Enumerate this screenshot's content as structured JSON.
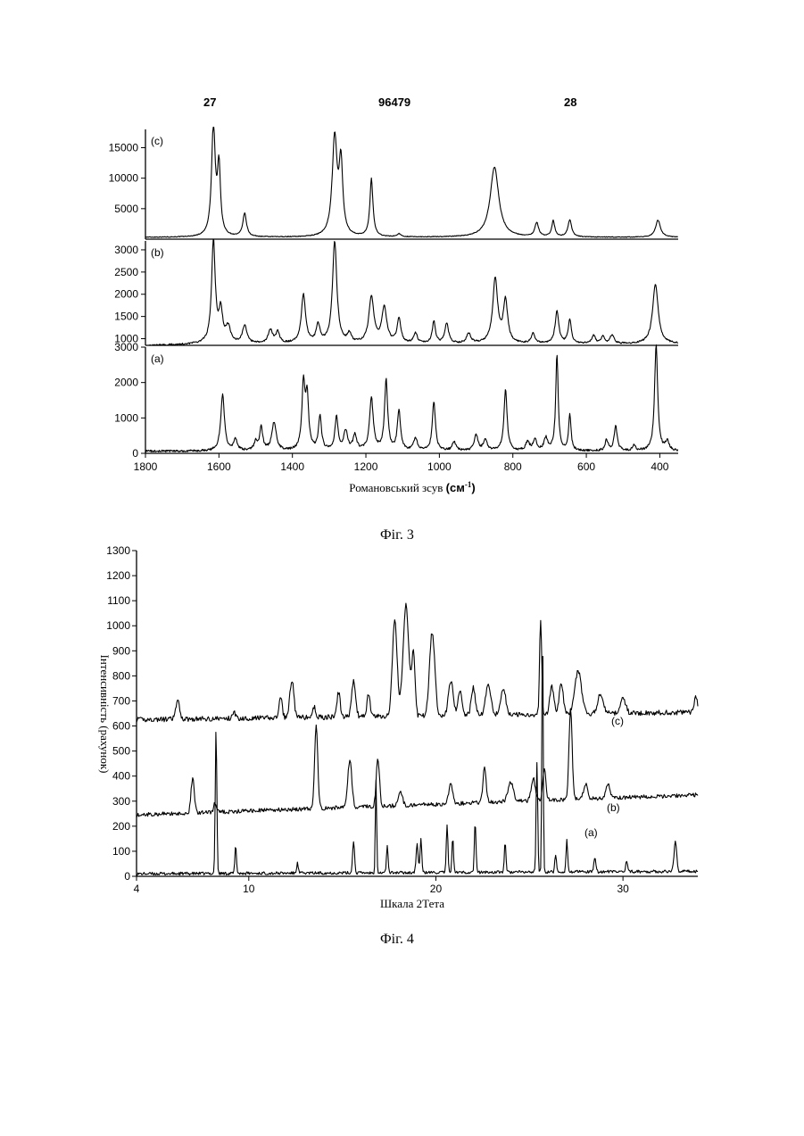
{
  "header": {
    "left_number": "27",
    "center_number": "96479",
    "right_number": "28"
  },
  "figure3": {
    "caption": "Фіг. 3",
    "chart_data": {
      "type": "line",
      "xlabel": "Романовський зсув",
      "xlabel_unit": "(см",
      "xlabel_unit_sup": "-1",
      "xlabel_unit_close": ")",
      "xlim": [
        1800,
        350
      ],
      "x_ticks": [
        1800,
        1600,
        1400,
        1200,
        1000,
        800,
        600,
        400
      ],
      "panels": [
        {
          "label": "(c)",
          "ylim": [
            0,
            18000
          ],
          "y_ticks": [
            5000,
            10000,
            15000
          ],
          "baseline": 300,
          "noise": 60,
          "peaks": [
            [
              1615,
              18000,
              6
            ],
            [
              1600,
              11000,
              5
            ],
            [
              1530,
              3800,
              6
            ],
            [
              1285,
              16000,
              8
            ],
            [
              1268,
              11500,
              6
            ],
            [
              1185,
              9500,
              5
            ],
            [
              1110,
              500,
              6
            ],
            [
              850,
              11500,
              14
            ],
            [
              735,
              2300,
              6
            ],
            [
              690,
              2600,
              5
            ],
            [
              645,
              2800,
              6
            ],
            [
              405,
              2800,
              8
            ]
          ]
        },
        {
          "label": "(b)",
          "ylim": [
            850,
            3200
          ],
          "y_ticks": [
            1000,
            1500,
            2000,
            2500,
            3000
          ],
          "baseline": 880,
          "noise": 18,
          "peaks": [
            [
              1615,
              2300,
              6
            ],
            [
              1595,
              700,
              6
            ],
            [
              1575,
              350,
              8
            ],
            [
              1530,
              400,
              7
            ],
            [
              1460,
              300,
              7
            ],
            [
              1440,
              250,
              6
            ],
            [
              1370,
              1100,
              7
            ],
            [
              1330,
              400,
              6
            ],
            [
              1285,
              2300,
              7
            ],
            [
              1245,
              200,
              6
            ],
            [
              1185,
              1050,
              8
            ],
            [
              1150,
              800,
              8
            ],
            [
              1110,
              550,
              6
            ],
            [
              1065,
              220,
              6
            ],
            [
              1015,
              500,
              5
            ],
            [
              980,
              450,
              6
            ],
            [
              920,
              220,
              7
            ],
            [
              848,
              1450,
              8
            ],
            [
              820,
              950,
              7
            ],
            [
              745,
              220,
              6
            ],
            [
              680,
              720,
              6
            ],
            [
              645,
              550,
              5
            ],
            [
              580,
              180,
              6
            ],
            [
              555,
              160,
              5
            ],
            [
              530,
              200,
              6
            ],
            [
              412,
              1350,
              9
            ]
          ]
        },
        {
          "label": "(a)",
          "ylim": [
            0,
            3000
          ],
          "y_ticks": [
            0,
            1000,
            2000,
            3000
          ],
          "baseline": 60,
          "noise": 30,
          "peaks": [
            [
              1590,
              1600,
              6
            ],
            [
              1555,
              300,
              6
            ],
            [
              1500,
              250,
              5
            ],
            [
              1485,
              650,
              5
            ],
            [
              1450,
              800,
              7
            ],
            [
              1370,
              1800,
              5
            ],
            [
              1360,
              1450,
              5
            ],
            [
              1325,
              950,
              5
            ],
            [
              1280,
              950,
              5
            ],
            [
              1255,
              550,
              6
            ],
            [
              1230,
              420,
              6
            ],
            [
              1185,
              1500,
              6
            ],
            [
              1145,
              2000,
              5
            ],
            [
              1110,
              1150,
              5
            ],
            [
              1065,
              350,
              6
            ],
            [
              1015,
              1400,
              5
            ],
            [
              960,
              250,
              6
            ],
            [
              900,
              450,
              6
            ],
            [
              875,
              300,
              6
            ],
            [
              820,
              1750,
              5
            ],
            [
              760,
              250,
              6
            ],
            [
              740,
              300,
              6
            ],
            [
              710,
              350,
              6
            ],
            [
              680,
              2700,
              4
            ],
            [
              645,
              1000,
              4
            ],
            [
              545,
              300,
              5
            ],
            [
              520,
              700,
              5
            ],
            [
              470,
              150,
              5
            ],
            [
              410,
              3000,
              5
            ],
            [
              380,
              250,
              6
            ]
          ]
        }
      ]
    }
  },
  "figure4": {
    "caption": "Фіг. 4",
    "chart_data": {
      "type": "line",
      "xlabel": "Шкала 2Тета",
      "ylabel": "Інтенсивність (рахунок)",
      "xlim": [
        4,
        34
      ],
      "ylim": [
        0,
        1300
      ],
      "x_ticks": [
        4,
        10,
        20,
        30
      ],
      "y_ticks": [
        0,
        100,
        200,
        300,
        400,
        500,
        600,
        700,
        800,
        900,
        1000,
        1100,
        1200,
        1300
      ],
      "series": [
        {
          "label": "(c)",
          "baseline": 625,
          "drift": 30,
          "noise": 10,
          "peaks": [
            [
              6.2,
              70,
              0.15
            ],
            [
              9.2,
              30,
              0.1
            ],
            [
              11.7,
              80,
              0.12
            ],
            [
              12.3,
              150,
              0.15
            ],
            [
              13.5,
              40,
              0.12
            ],
            [
              14.8,
              100,
              0.12
            ],
            [
              15.6,
              140,
              0.15
            ],
            [
              16.4,
              90,
              0.12
            ],
            [
              17.8,
              380,
              0.18
            ],
            [
              18.4,
              440,
              0.22
            ],
            [
              18.8,
              250,
              0.12
            ],
            [
              19.8,
              330,
              0.2
            ],
            [
              20.8,
              140,
              0.18
            ],
            [
              21.3,
              100,
              0.15
            ],
            [
              22.0,
              110,
              0.15
            ],
            [
              22.8,
              120,
              0.2
            ],
            [
              23.6,
              100,
              0.2
            ],
            [
              25.6,
              380,
              0.08
            ],
            [
              26.2,
              110,
              0.15
            ],
            [
              26.7,
              120,
              0.15
            ],
            [
              27.6,
              170,
              0.25
            ],
            [
              28.8,
              80,
              0.2
            ],
            [
              30.0,
              60,
              0.2
            ],
            [
              33.9,
              60,
              0.12
            ]
          ]
        },
        {
          "label": "(b)",
          "baseline": 245,
          "drift": 80,
          "noise": 8,
          "peaks": [
            [
              7.0,
              140,
              0.12
            ],
            [
              8.2,
              40,
              0.1
            ],
            [
              13.6,
              330,
              0.12
            ],
            [
              15.4,
              190,
              0.15
            ],
            [
              16.9,
              190,
              0.12
            ],
            [
              18.1,
              60,
              0.15
            ],
            [
              20.8,
              80,
              0.15
            ],
            [
              22.6,
              140,
              0.12
            ],
            [
              24.0,
              80,
              0.2
            ],
            [
              25.2,
              90,
              0.15
            ],
            [
              25.8,
              120,
              0.12
            ],
            [
              27.2,
              360,
              0.12
            ],
            [
              28.0,
              60,
              0.15
            ],
            [
              29.2,
              60,
              0.15
            ]
          ]
        },
        {
          "label": "(a)",
          "baseline": 10,
          "drift": 10,
          "noise": 6,
          "peaks": [
            [
              8.25,
              580,
              0.06
            ],
            [
              9.3,
              110,
              0.06
            ],
            [
              12.6,
              40,
              0.06
            ],
            [
              15.6,
              130,
              0.07
            ],
            [
              16.8,
              370,
              0.05
            ],
            [
              17.4,
              110,
              0.06
            ],
            [
              19.0,
              110,
              0.08
            ],
            [
              19.2,
              140,
              0.06
            ],
            [
              20.6,
              190,
              0.06
            ],
            [
              20.9,
              140,
              0.06
            ],
            [
              22.1,
              200,
              0.06
            ],
            [
              23.7,
              120,
              0.06
            ],
            [
              25.4,
              440,
              0.06
            ],
            [
              25.7,
              1010,
              0.05
            ],
            [
              26.4,
              70,
              0.06
            ],
            [
              27.0,
              130,
              0.06
            ],
            [
              28.5,
              50,
              0.08
            ],
            [
              30.2,
              40,
              0.08
            ],
            [
              32.8,
              120,
              0.1
            ]
          ]
        }
      ]
    }
  }
}
